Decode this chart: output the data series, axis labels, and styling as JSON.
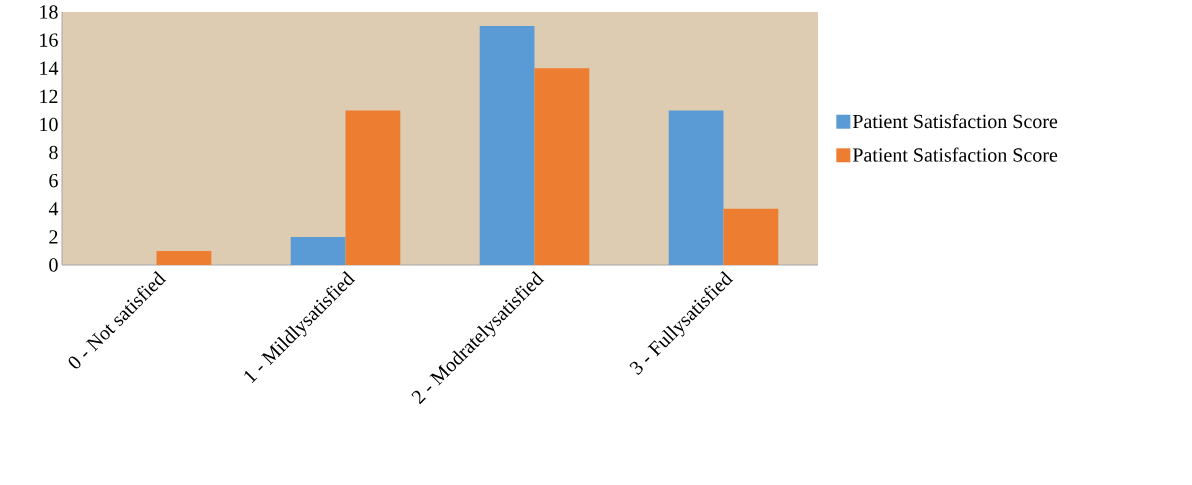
{
  "chart_data": {
    "type": "bar",
    "categories": [
      "0 - Not satisfied",
      "1 - Mildlysatisfied",
      "2 - Modratelysatisfied",
      "3 - Fullysatisfied"
    ],
    "series": [
      {
        "name": "Patient Satisfaction Score",
        "color": "#5b9bd5",
        "values": [
          0,
          2,
          17,
          11
        ]
      },
      {
        "name": "Patient Satisfaction Score",
        "color": "#ed7d31",
        "values": [
          1,
          11,
          14,
          4
        ]
      }
    ],
    "ylim": [
      0,
      18
    ],
    "yticks": [
      0,
      2,
      4,
      6,
      8,
      10,
      12,
      14,
      16,
      18
    ],
    "grid": false,
    "legend": "right"
  }
}
